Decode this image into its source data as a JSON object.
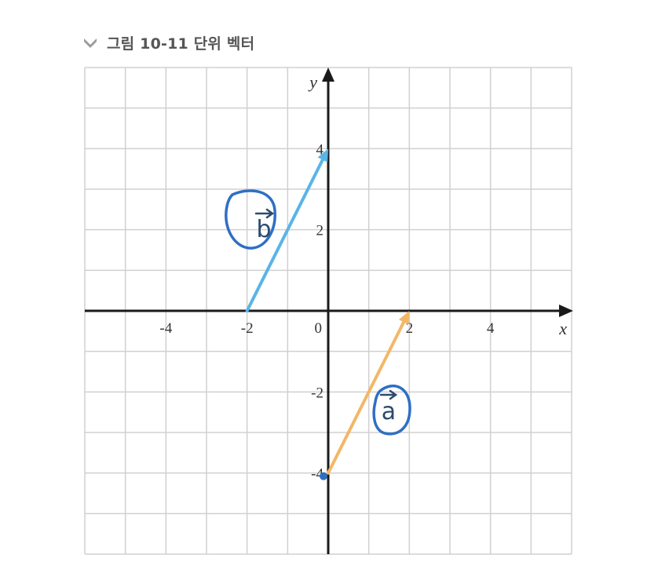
{
  "caption": {
    "text": "그림 10-11 단위 벡터",
    "icon": "chevron-down-icon"
  },
  "colors": {
    "grid": "#d0d0d0",
    "axis": "#1a1a1a",
    "vector_a": "#f2b866",
    "vector_b": "#5ab4e8",
    "annotation": "#2e6fc4",
    "dot": "#2e6fc4"
  },
  "chart_data": {
    "type": "vector-plot",
    "xlabel": "x",
    "ylabel": "y",
    "xlim": [
      -6,
      6
    ],
    "ylim": [
      -6,
      6
    ],
    "grid": true,
    "x_ticks": [
      {
        "value": -4,
        "label": "-4"
      },
      {
        "value": -2,
        "label": "-2"
      },
      {
        "value": 2,
        "label": "2"
      },
      {
        "value": 4,
        "label": "4"
      }
    ],
    "y_ticks": [
      {
        "value": 4,
        "label": "4"
      },
      {
        "value": 2,
        "label": "2"
      },
      {
        "value": -2,
        "label": "-2"
      },
      {
        "value": -4,
        "label": "-4"
      }
    ],
    "origin_label": "0",
    "vectors": [
      {
        "id": "b",
        "label": "b",
        "from": [
          -2,
          0
        ],
        "to": [
          0,
          4
        ]
      },
      {
        "id": "a",
        "label": "a",
        "from": [
          0,
          -4
        ],
        "to": [
          2,
          0
        ]
      }
    ],
    "annotations": {
      "circle_b_label": "b",
      "circle_a_label": "a"
    }
  }
}
